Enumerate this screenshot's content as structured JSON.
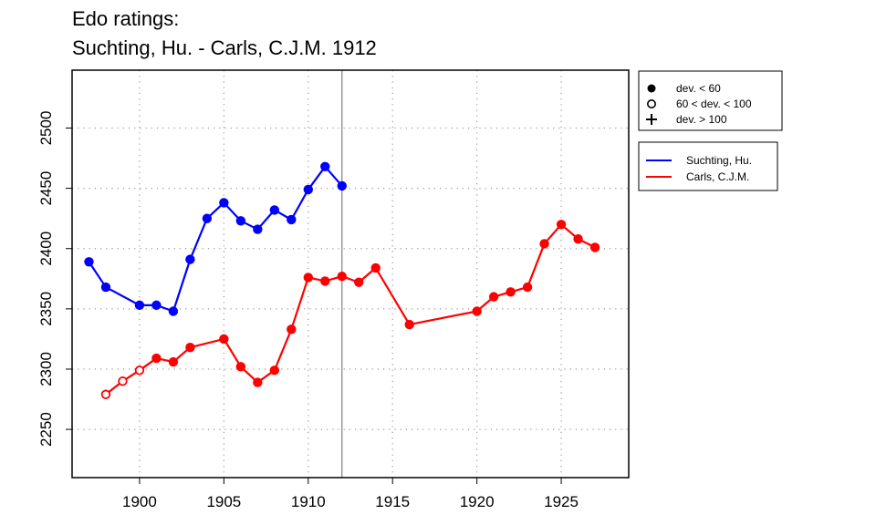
{
  "title": [
    "Edo ratings:",
    "Suchting, Hu. - Carls, C.J.M. 1912"
  ],
  "chart_data": {
    "type": "line",
    "title": "Edo ratings: Suchting, Hu. - Carls, C.J.M. 1912",
    "xlabel": "",
    "ylabel": "",
    "xlim": [
      1896,
      1929
    ],
    "ylim": [
      2210,
      2548
    ],
    "xticks": [
      1900,
      1905,
      1910,
      1915,
      1920,
      1925
    ],
    "yticks": [
      2250,
      2300,
      2350,
      2400,
      2450,
      2500
    ],
    "grid": true,
    "vline_x": 1912,
    "series": [
      {
        "name": "Suchting, Hu.",
        "color": "#0000ff",
        "points": [
          {
            "x": 1897,
            "y": 2389,
            "dev": "low"
          },
          {
            "x": 1898,
            "y": 2368,
            "dev": "low"
          },
          {
            "x": 1900,
            "y": 2353,
            "dev": "low"
          },
          {
            "x": 1901,
            "y": 2353,
            "dev": "low"
          },
          {
            "x": 1902,
            "y": 2348,
            "dev": "low"
          },
          {
            "x": 1903,
            "y": 2391,
            "dev": "low"
          },
          {
            "x": 1904,
            "y": 2425,
            "dev": "low"
          },
          {
            "x": 1905,
            "y": 2438,
            "dev": "low"
          },
          {
            "x": 1906,
            "y": 2423,
            "dev": "low"
          },
          {
            "x": 1907,
            "y": 2416,
            "dev": "low"
          },
          {
            "x": 1908,
            "y": 2432,
            "dev": "low"
          },
          {
            "x": 1909,
            "y": 2424,
            "dev": "low"
          },
          {
            "x": 1910,
            "y": 2449,
            "dev": "low"
          },
          {
            "x": 1911,
            "y": 2468,
            "dev": "low"
          },
          {
            "x": 1912,
            "y": 2452,
            "dev": "low"
          }
        ]
      },
      {
        "name": "Carls, C.J.M.",
        "color": "#ff0000",
        "points": [
          {
            "x": 1898,
            "y": 2279,
            "dev": "mid"
          },
          {
            "x": 1899,
            "y": 2290,
            "dev": "mid"
          },
          {
            "x": 1900,
            "y": 2299,
            "dev": "mid"
          },
          {
            "x": 1901,
            "y": 2309,
            "dev": "low"
          },
          {
            "x": 1902,
            "y": 2306,
            "dev": "low"
          },
          {
            "x": 1903,
            "y": 2318,
            "dev": "low"
          },
          {
            "x": 1905,
            "y": 2325,
            "dev": "low"
          },
          {
            "x": 1906,
            "y": 2302,
            "dev": "low"
          },
          {
            "x": 1907,
            "y": 2289,
            "dev": "low"
          },
          {
            "x": 1908,
            "y": 2299,
            "dev": "low"
          },
          {
            "x": 1909,
            "y": 2333,
            "dev": "low"
          },
          {
            "x": 1910,
            "y": 2376,
            "dev": "low"
          },
          {
            "x": 1911,
            "y": 2373,
            "dev": "low"
          },
          {
            "x": 1912,
            "y": 2377,
            "dev": "low"
          },
          {
            "x": 1913,
            "y": 2372,
            "dev": "low"
          },
          {
            "x": 1914,
            "y": 2384,
            "dev": "low"
          },
          {
            "x": 1916,
            "y": 2337,
            "dev": "low"
          },
          {
            "x": 1920,
            "y": 2348,
            "dev": "low"
          },
          {
            "x": 1921,
            "y": 2360,
            "dev": "low"
          },
          {
            "x": 1922,
            "y": 2364,
            "dev": "low"
          },
          {
            "x": 1923,
            "y": 2368,
            "dev": "low"
          },
          {
            "x": 1924,
            "y": 2404,
            "dev": "low"
          },
          {
            "x": 1925,
            "y": 2420,
            "dev": "low"
          },
          {
            "x": 1926,
            "y": 2408,
            "dev": "low"
          },
          {
            "x": 1927,
            "y": 2401,
            "dev": "low"
          }
        ]
      }
    ],
    "legend_markers": [
      {
        "symbol": "filled-circle",
        "label": "dev. < 60"
      },
      {
        "symbol": "open-circle",
        "label": "60 < dev. < 100"
      },
      {
        "symbol": "plus",
        "label": "dev. > 100"
      }
    ],
    "legend_position": "right"
  }
}
